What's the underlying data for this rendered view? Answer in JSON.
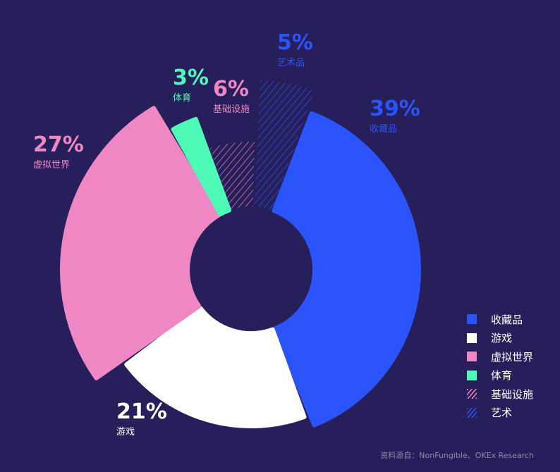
{
  "chart_data": {
    "type": "pie",
    "variant": "donut",
    "series": [
      {
        "name": "收藏品",
        "value": 39,
        "label": "39%",
        "color": "#2b54fb",
        "pattern": "solid"
      },
      {
        "name": "游戏",
        "value": 21,
        "label": "21%",
        "color": "#ffffff",
        "pattern": "solid"
      },
      {
        "name": "虚拟世界",
        "value": 27,
        "label": "27%",
        "color": "#ee87c4",
        "pattern": "solid"
      },
      {
        "name": "体育",
        "value": 3,
        "label": "3%",
        "color": "#4dfab8",
        "pattern": "solid"
      },
      {
        "name": "基础设施",
        "value": 6,
        "label": "6%",
        "color": "#ee87c4",
        "pattern": "hatched"
      },
      {
        "name": "艺术品",
        "value": 5,
        "label": "5%",
        "color": "#2b54fb",
        "pattern": "hatched"
      }
    ],
    "legend": {
      "position": "bottom-right",
      "items": [
        {
          "label": "收藏品",
          "color": "#2b54fb",
          "pattern": "solid"
        },
        {
          "label": "游戏",
          "color": "#ffffff",
          "pattern": "solid"
        },
        {
          "label": "虚拟世界",
          "color": "#ee87c4",
          "pattern": "solid"
        },
        {
          "label": "体育",
          "color": "#4dfab8",
          "pattern": "solid"
        },
        {
          "label": "基础设施",
          "color": "#ee87c4",
          "pattern": "hatched"
        },
        {
          "label": "艺术",
          "color": "#2b54fb",
          "pattern": "hatched"
        }
      ]
    },
    "source": "资料源自：NonFungible、OKEx Research"
  }
}
